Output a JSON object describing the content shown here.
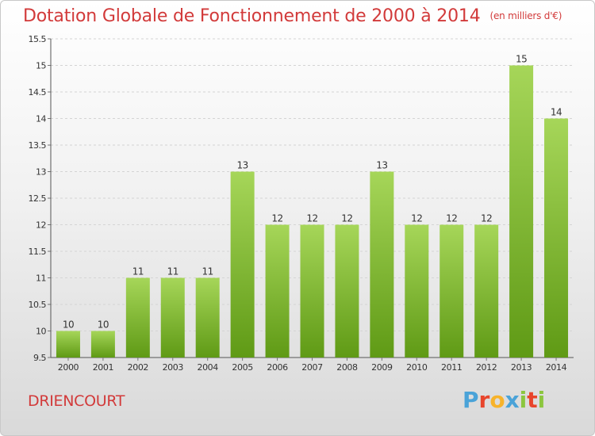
{
  "header": {
    "title": "Dotation Globale de Fonctionnement de 2000 à 2014",
    "unit": "(en milliers d'€)"
  },
  "footer": {
    "commune": "DRIENCOURT",
    "brand": "Proxiti",
    "brand_colors": [
      "#4aa3d8",
      "#e8452c",
      "#f7b32b",
      "#4aa3d8",
      "#8cc63f",
      "#e8452c",
      "#8cc63f"
    ]
  },
  "chart_data": {
    "type": "bar",
    "title": "Dotation Globale de Fonctionnement de 2000 à 2014",
    "subtitle": "(en milliers d'€)",
    "xlabel": "",
    "ylabel": "",
    "categories": [
      "2000",
      "2001",
      "2002",
      "2003",
      "2004",
      "2005",
      "2006",
      "2007",
      "2008",
      "2009",
      "2010",
      "2011",
      "2012",
      "2013",
      "2014"
    ],
    "values": [
      10,
      10,
      11,
      11,
      11,
      13,
      12,
      12,
      12,
      13,
      12,
      12,
      12,
      15,
      14
    ],
    "data_labels": [
      "10",
      "10",
      "11",
      "11",
      "11",
      "13",
      "12",
      "12",
      "12",
      "13",
      "12",
      "12",
      "12",
      "15",
      "14"
    ],
    "ylim": [
      9.5,
      15.5
    ],
    "yticks": [
      9.5,
      10,
      10.5,
      11,
      11.5,
      12,
      12.5,
      13,
      13.5,
      14,
      14.5,
      15,
      15.5
    ],
    "ytick_labels": [
      "9.5",
      "10",
      "10.5",
      "11",
      "11.5",
      "12",
      "12.5",
      "13",
      "13.5",
      "14",
      "14.5",
      "15",
      "15.5"
    ],
    "grid": true,
    "bar_color_top": "#a6d659",
    "bar_color_bottom": "#5f9a15"
  }
}
